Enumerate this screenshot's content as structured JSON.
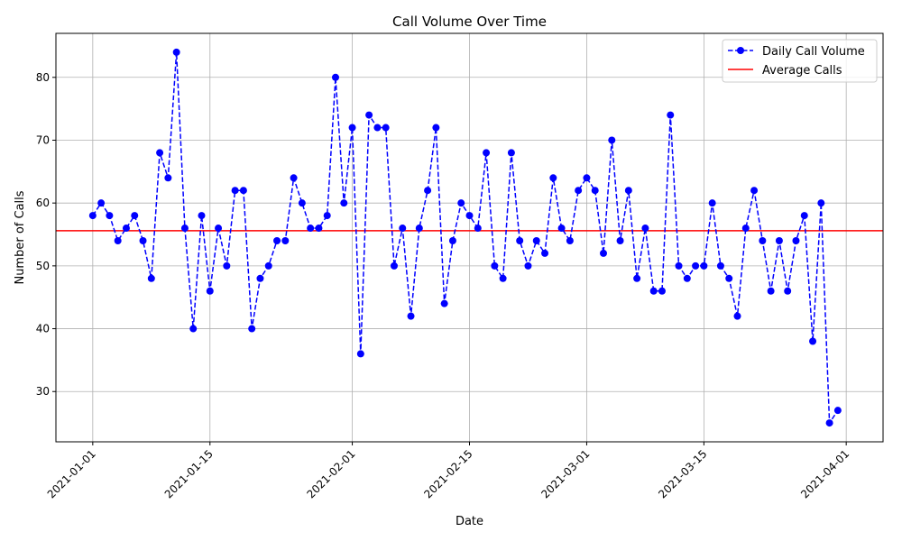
{
  "chart_data": {
    "type": "line",
    "title": "Call Volume Over Time",
    "xlabel": "Date",
    "ylabel": "Number of Calls",
    "start_date": "2021-01-01",
    "x_tick_labels": [
      "2021-01-01",
      "2021-01-15",
      "2021-02-01",
      "2021-02-15",
      "2021-03-01",
      "2021-03-15",
      "2021-04-01"
    ],
    "y_ticks": [
      30,
      40,
      50,
      60,
      70,
      80
    ],
    "y_tick_labels": [
      "30",
      "40",
      "50",
      "60",
      "70",
      "80"
    ],
    "ylim": [
      22,
      87
    ],
    "xlim_days": [
      -4.4,
      94.4
    ],
    "grid": true,
    "legend_position": "top-right",
    "series": [
      {
        "name": "Daily Call Volume",
        "color": "#0000ff",
        "style": "dashed line with circle markers",
        "values": [
          58,
          60,
          58,
          54,
          56,
          58,
          54,
          48,
          68,
          64,
          84,
          56,
          40,
          58,
          46,
          56,
          50,
          62,
          62,
          40,
          48,
          50,
          54,
          54,
          64,
          60,
          56,
          56,
          58,
          80,
          60,
          72,
          36,
          74,
          72,
          72,
          50,
          56,
          42,
          56,
          62,
          72,
          44,
          54,
          60,
          58,
          56,
          68,
          50,
          48,
          68,
          54,
          50,
          54,
          52,
          64,
          56,
          54,
          62,
          64,
          62,
          52,
          70,
          54,
          62,
          48,
          56,
          46,
          46,
          74,
          50,
          48,
          50,
          50,
          60,
          50,
          48,
          42,
          56,
          62,
          54,
          46,
          54,
          46,
          54,
          58,
          38,
          60,
          25,
          27
        ]
      }
    ],
    "reference_lines": [
      {
        "name": "Average Calls",
        "color": "#ff0000",
        "value": 55.6
      }
    ]
  }
}
